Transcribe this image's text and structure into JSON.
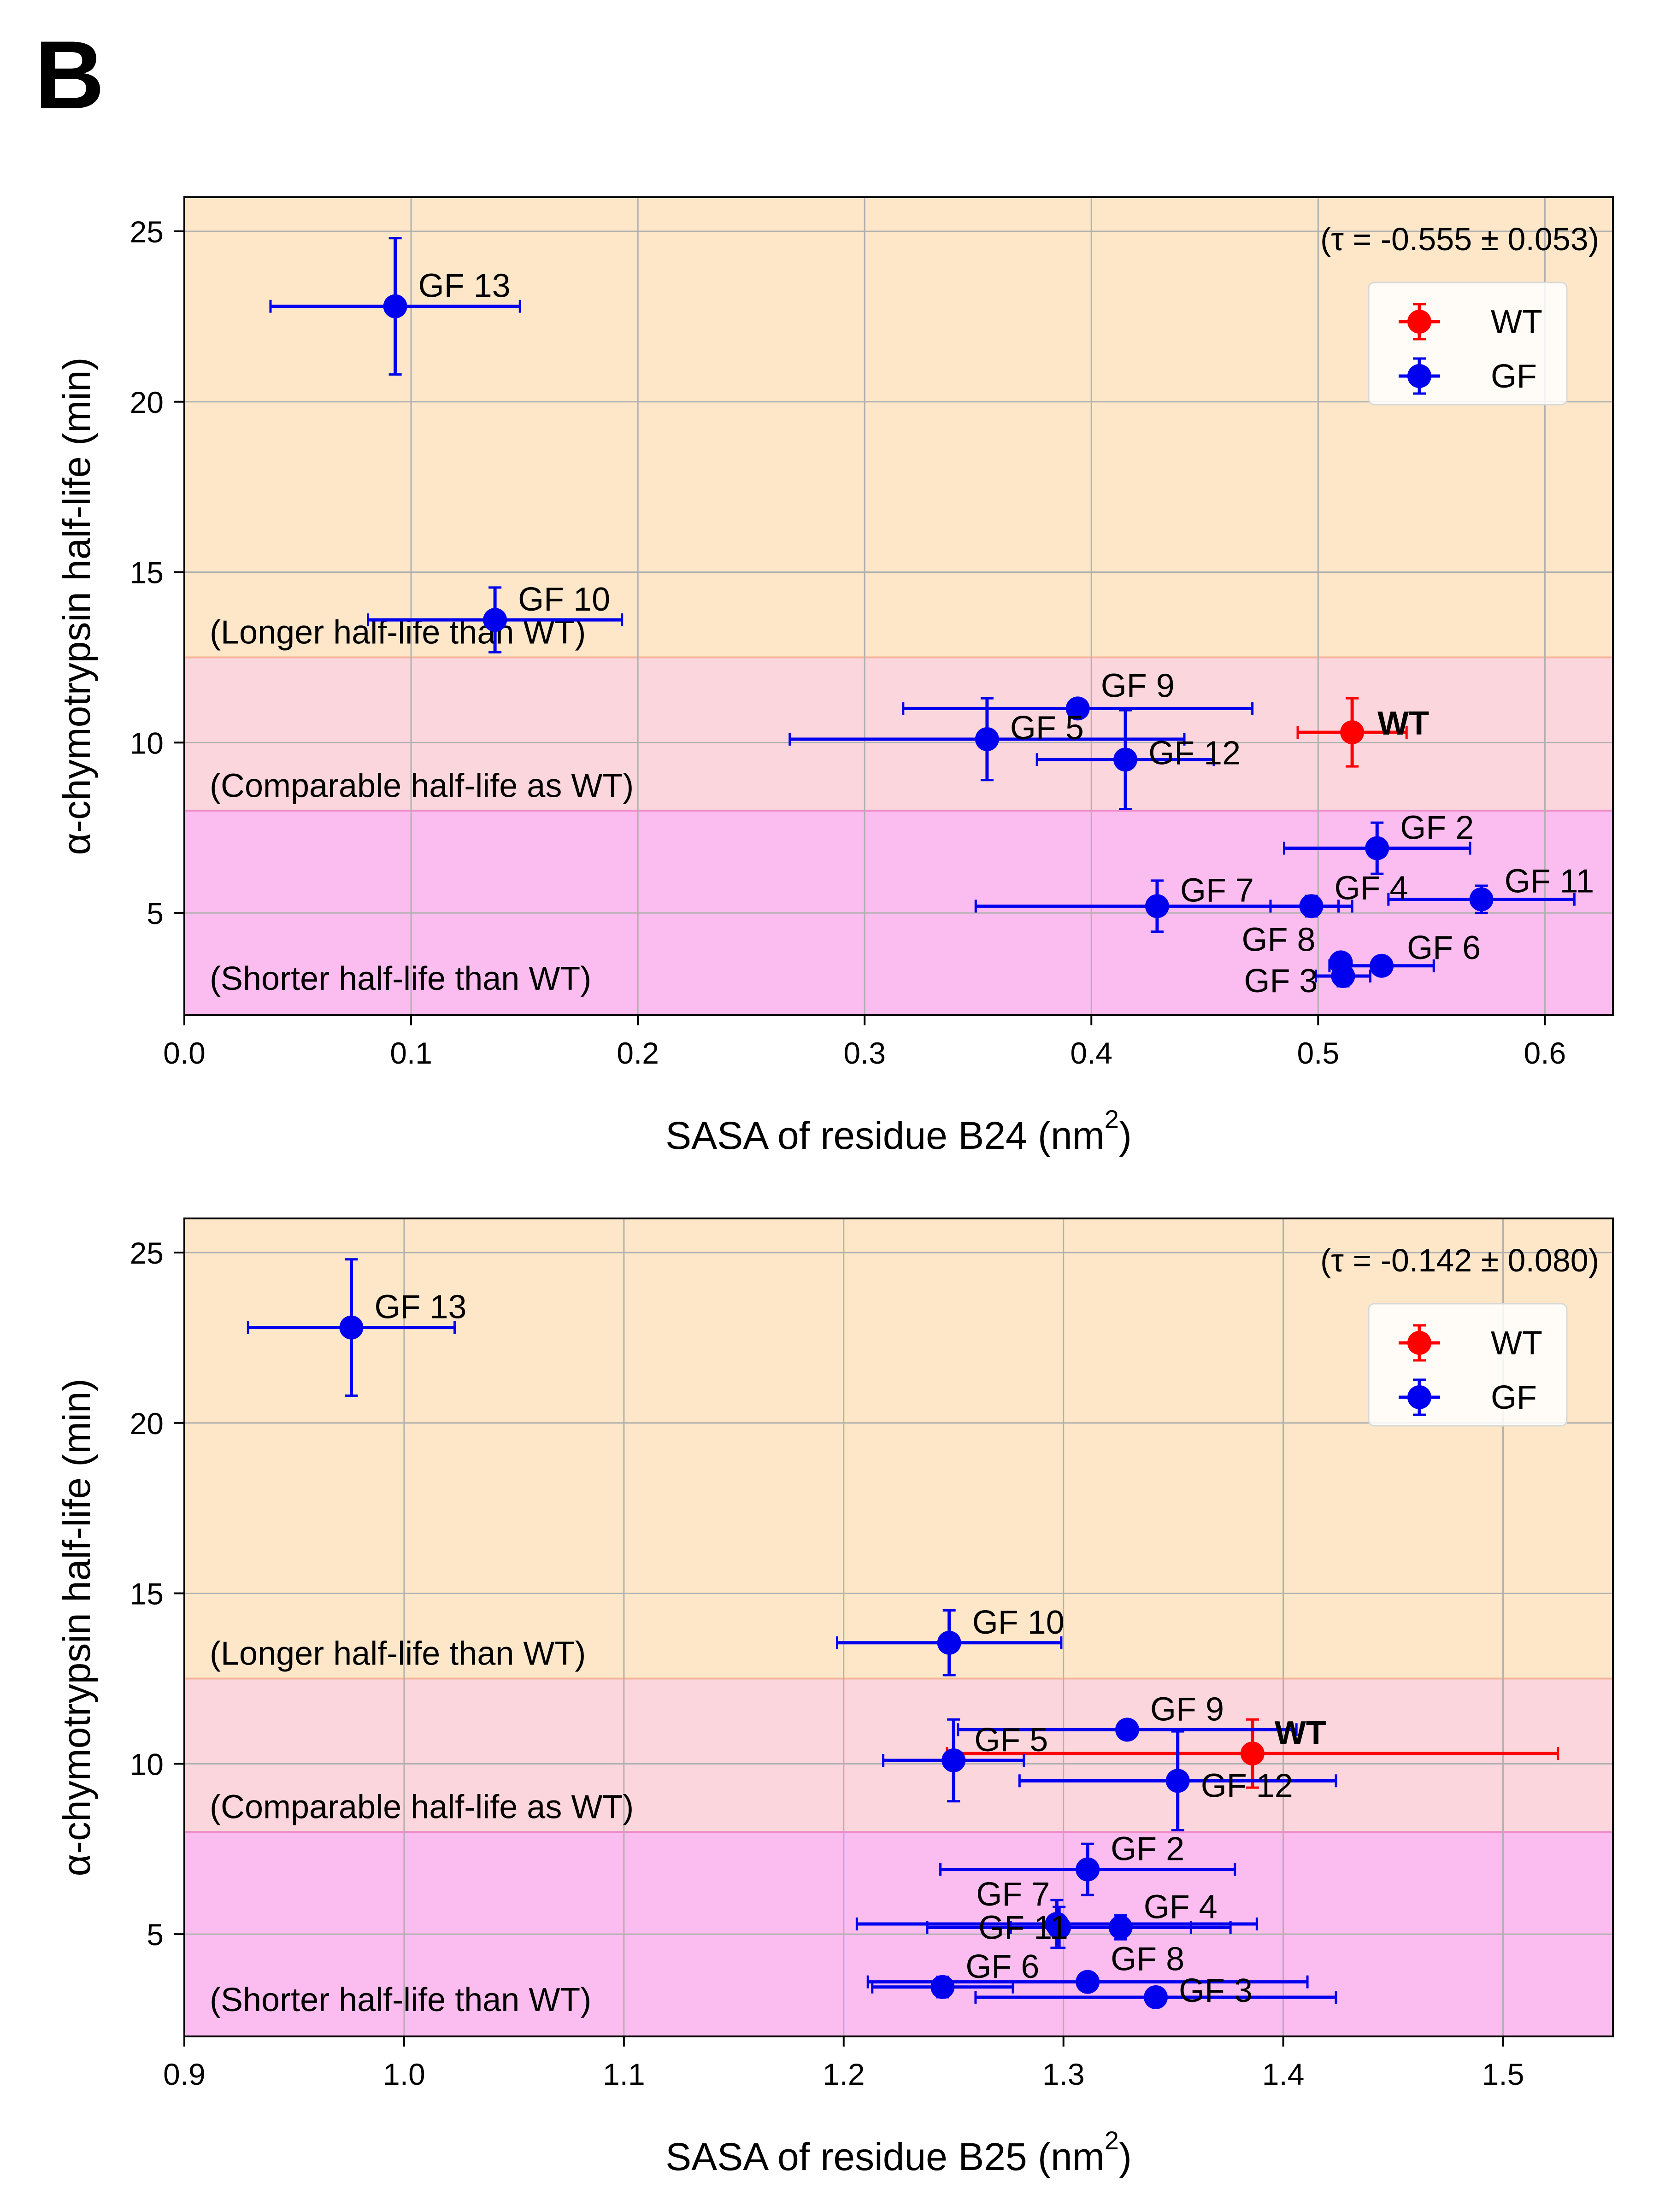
{
  "panel_label": "B",
  "regions": [
    {
      "label": "(Longer half-life than WT)",
      "y_from": 12.5,
      "y_to": 26,
      "color": "#fde7c8"
    },
    {
      "label": "(Comparable half-life as WT)",
      "y_from": 8,
      "y_to": 12.5,
      "color": "#fcd6dd"
    },
    {
      "label": "(Shorter half-life than WT)",
      "y_from": 2,
      "y_to": 8,
      "color": "#fbbcef"
    }
  ],
  "colors": {
    "WT": "#ff0000",
    "GF": "#0000ee",
    "grid": "#b0b0b0",
    "boundary_upper": "#f5b49a",
    "boundary_lower": "#ee8bc8"
  },
  "chart_data": [
    {
      "type": "scatter",
      "title": "",
      "xlabel": "SASA of residue B24 (nm",
      "xlabel_sup": "2",
      "xlabel_end": ")",
      "ylabel": "α-chymotrypsin half-life (min)",
      "xlim": [
        0.0,
        0.63
      ],
      "ylim": [
        2,
        26
      ],
      "xticks": [
        "0.0",
        "0.1",
        "0.2",
        "0.3",
        "0.4",
        "0.5",
        "0.6"
      ],
      "yticks": [
        "5",
        "10",
        "15",
        "20",
        "25"
      ],
      "grid": true,
      "annotation": "(τ = -0.555 ± 0.053)",
      "legend": {
        "position": "upper-right",
        "entries": [
          "WT",
          "GF"
        ]
      },
      "series": [
        {
          "name": "WT",
          "points": [
            {
              "label": "WT",
              "x": 0.515,
              "y": 10.3,
              "xerr": 0.024,
              "yerr": 1.0
            }
          ]
        },
        {
          "name": "GF",
          "points": [
            {
              "label": "GF 13",
              "x": 0.093,
              "y": 22.8,
              "xerr": 0.055,
              "yerr": 2.0
            },
            {
              "label": "GF 10",
              "x": 0.137,
              "y": 13.6,
              "xerr": 0.056,
              "yerr": 0.95
            },
            {
              "label": "GF 9",
              "x": 0.394,
              "y": 11.0,
              "xerr": 0.077,
              "yerr": 0.0
            },
            {
              "label": "GF 5",
              "x": 0.354,
              "y": 10.1,
              "xerr": 0.087,
              "yerr": 1.2
            },
            {
              "label": "GF 12",
              "x": 0.415,
              "y": 9.5,
              "xerr": 0.039,
              "yerr": 1.45
            },
            {
              "label": "GF 2",
              "x": 0.526,
              "y": 6.9,
              "xerr": 0.041,
              "yerr": 0.75
            },
            {
              "label": "GF 11",
              "x": 0.572,
              "y": 5.4,
              "xerr": 0.041,
              "yerr": 0.4
            },
            {
              "label": "GF 7",
              "x": 0.429,
              "y": 5.2,
              "xerr": 0.08,
              "yerr": 0.75
            },
            {
              "label": "GF 4",
              "x": 0.497,
              "y": 5.2,
              "xerr": 0.018,
              "yerr": 0.3
            },
            {
              "label": "GF 8",
              "x": 0.51,
              "y": 3.55,
              "xerr": 0.0,
              "yerr": 0.0
            },
            {
              "label": "GF 6",
              "x": 0.528,
              "y": 3.45,
              "xerr": 0.023,
              "yerr": 0.25
            },
            {
              "label": "GF 3",
              "x": 0.511,
              "y": 3.15,
              "xerr": 0.012,
              "yerr": 0.3
            }
          ]
        }
      ]
    },
    {
      "type": "scatter",
      "title": "",
      "xlabel": "SASA of residue B25 (nm",
      "xlabel_sup": "2",
      "xlabel_end": ")",
      "ylabel": "α-chymotrypsin half-life (min)",
      "xlim": [
        0.9,
        1.55
      ],
      "ylim": [
        2,
        26
      ],
      "xticks": [
        "0.9",
        "1.0",
        "1.1",
        "1.2",
        "1.3",
        "1.4",
        "1.5"
      ],
      "yticks": [
        "5",
        "10",
        "15",
        "20",
        "25"
      ],
      "grid": true,
      "annotation": "(τ = -0.142 ± 0.080)",
      "legend": {
        "position": "upper-right",
        "entries": [
          "WT",
          "GF"
        ]
      },
      "series": [
        {
          "name": "WT",
          "points": [
            {
              "label": "WT",
              "x": 1.386,
              "y": 10.3,
              "xerr": 0.139,
              "yerr": 1.0
            }
          ]
        },
        {
          "name": "GF",
          "points": [
            {
              "label": "GF 13",
              "x": 0.976,
              "y": 22.8,
              "xerr": 0.047,
              "yerr": 2.0
            },
            {
              "label": "GF 10",
              "x": 1.248,
              "y": 13.55,
              "xerr": 0.051,
              "yerr": 0.95
            },
            {
              "label": "GF 9",
              "x": 1.329,
              "y": 11.0,
              "xerr": 0.077,
              "yerr": 0.0
            },
            {
              "label": "GF 5",
              "x": 1.25,
              "y": 10.1,
              "xerr": 0.032,
              "yerr": 1.2
            },
            {
              "label": "GF 12",
              "x": 1.352,
              "y": 9.5,
              "xerr": 0.072,
              "yerr": 1.45
            },
            {
              "label": "GF 2",
              "x": 1.311,
              "y": 6.9,
              "xerr": 0.067,
              "yerr": 0.75
            },
            {
              "label": "GF 7",
              "x": 1.297,
              "y": 5.3,
              "xerr": 0.091,
              "yerr": 0.7
            },
            {
              "label": "GF 11",
              "x": 1.298,
              "y": 5.2,
              "xerr": 0.06,
              "yerr": 0.6
            },
            {
              "label": "GF 4",
              "x": 1.326,
              "y": 5.2,
              "xerr": 0.05,
              "yerr": 0.35
            },
            {
              "label": "GF 8",
              "x": 1.311,
              "y": 3.6,
              "xerr": 0.1,
              "yerr": 0.0
            },
            {
              "label": "GF 6",
              "x": 1.245,
              "y": 3.45,
              "xerr": 0.032,
              "yerr": 0.3
            },
            {
              "label": "GF 3",
              "x": 1.342,
              "y": 3.15,
              "xerr": 0.082,
              "yerr": 0.0
            }
          ]
        }
      ]
    }
  ]
}
